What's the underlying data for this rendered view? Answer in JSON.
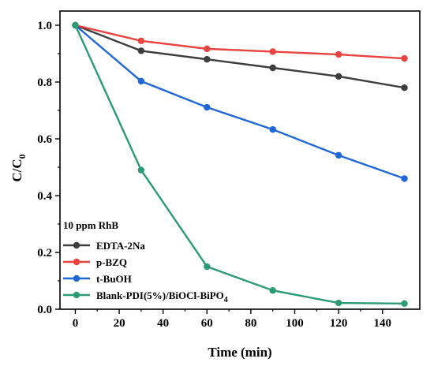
{
  "chart_data": {
    "type": "line",
    "xlabel": "Time (min)",
    "ylabel_main": "C/C",
    "ylabel_sub": "0",
    "xlim": [
      -7,
      157
    ],
    "ylim": [
      0.0,
      1.05
    ],
    "xticks": [
      0,
      20,
      40,
      60,
      80,
      100,
      120,
      140
    ],
    "xtick_labels": [
      "0",
      "20",
      "40",
      "60",
      "80",
      "100",
      "120",
      "140"
    ],
    "yticks": [
      0.0,
      0.2,
      0.4,
      0.6,
      0.8,
      1.0
    ],
    "ytick_labels": [
      "0.0",
      "0.2",
      "0.4",
      "0.6",
      "0.8",
      "1.0"
    ],
    "legend_title": "10 ppm RhB",
    "legend_position": "bottom-left",
    "x": [
      0,
      30,
      60,
      90,
      120,
      150
    ],
    "series": [
      {
        "name": "EDTA-2Na",
        "color": "#3d3d3d",
        "values": [
          1.0,
          0.91,
          0.88,
          0.85,
          0.82,
          0.78
        ]
      },
      {
        "name": "p-BZQ",
        "color": "#e8433f",
        "values": [
          1.0,
          0.945,
          0.917,
          0.907,
          0.897,
          0.883
        ]
      },
      {
        "name": "t-BuOH",
        "color": "#1f67d6",
        "values": [
          1.0,
          0.803,
          0.711,
          0.633,
          0.542,
          0.46
        ]
      },
      {
        "name": "Blank-PDI(5%)/BiOCl-BiPO",
        "name_sub": "4",
        "color": "#2c9a74",
        "values": [
          1.0,
          0.49,
          0.15,
          0.066,
          0.022,
          0.02
        ]
      }
    ]
  }
}
